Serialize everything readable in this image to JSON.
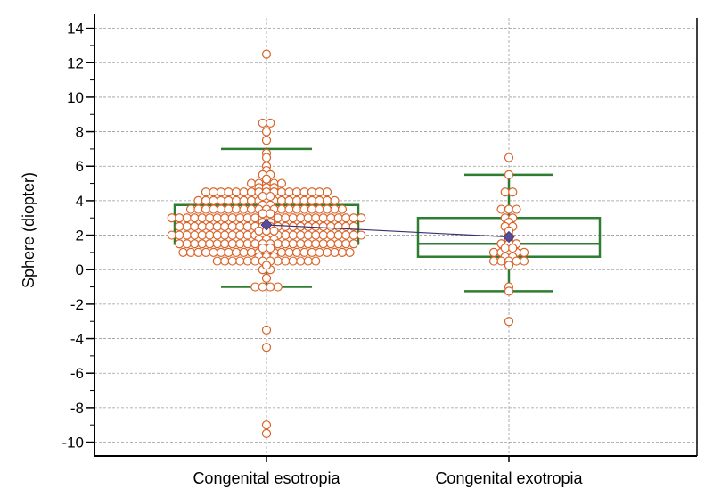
{
  "chart_data": {
    "type": "box",
    "title": "",
    "xlabel": "",
    "ylabel": "Sphere (diopter)",
    "ylim": [
      -10.8,
      14.6
    ],
    "yticks": [
      14,
      12,
      10,
      8,
      6,
      4,
      2,
      0,
      -2,
      -4,
      -6,
      -8,
      -10
    ],
    "grid": true,
    "categories": [
      "Congenital esotropia",
      "Congenital exotropia"
    ],
    "colors": {
      "box": "#2e7d32",
      "points": "#d9642a",
      "mean_marker": "#5a4a9c",
      "mean_line": "#3a3070",
      "grid": "#9a9a9a"
    },
    "boxes": [
      {
        "whisker_low": -1.0,
        "q1": 1.5,
        "median": 2.5,
        "q3": 3.75,
        "whisker_high": 7.0,
        "mean": 2.6
      },
      {
        "whisker_low": -1.25,
        "q1": 0.75,
        "median": 1.5,
        "q3": 3.0,
        "whisker_high": 5.5,
        "mean": 1.9
      }
    ],
    "points": [
      [
        12.5,
        8.5,
        8.5,
        8.0,
        7.5,
        6.75,
        6.5,
        6.0,
        5.75,
        5.5,
        5.5,
        5.25,
        5.0,
        5.0,
        5.0,
        5.0,
        5.0,
        4.75,
        4.75,
        4.75,
        4.5,
        4.5,
        4.5,
        4.5,
        4.5,
        4.5,
        4.5,
        4.5,
        4.5,
        4.5,
        4.5,
        4.5,
        4.5,
        4.5,
        4.5,
        4.5,
        4.5,
        4.25,
        4.25,
        4.0,
        4.0,
        4.0,
        4.0,
        4.0,
        4.0,
        4.0,
        4.0,
        4.0,
        4.0,
        4.0,
        4.0,
        4.0,
        4.0,
        4.0,
        4.0,
        4.0,
        4.0,
        4.0,
        3.75,
        3.75,
        3.5,
        3.5,
        3.5,
        3.5,
        3.5,
        3.5,
        3.5,
        3.5,
        3.5,
        3.5,
        3.5,
        3.5,
        3.5,
        3.5,
        3.5,
        3.5,
        3.5,
        3.5,
        3.5,
        3.5,
        3.5,
        3.25,
        3.25,
        3.0,
        3.0,
        3.0,
        3.0,
        3.0,
        3.0,
        3.0,
        3.0,
        3.0,
        3.0,
        3.0,
        3.0,
        3.0,
        3.0,
        3.0,
        3.0,
        3.0,
        3.0,
        3.0,
        3.0,
        3.0,
        3.0,
        3.0,
        3.0,
        3.0,
        3.0,
        2.75,
        2.75,
        2.5,
        2.5,
        2.5,
        2.5,
        2.5,
        2.5,
        2.5,
        2.5,
        2.5,
        2.5,
        2.5,
        2.5,
        2.5,
        2.5,
        2.5,
        2.5,
        2.5,
        2.5,
        2.5,
        2.5,
        2.5,
        2.5,
        2.5,
        2.5,
        2.25,
        2.25,
        2.25,
        2.0,
        2.0,
        2.0,
        2.0,
        2.0,
        2.0,
        2.0,
        2.0,
        2.0,
        2.0,
        2.0,
        2.0,
        2.0,
        2.0,
        2.0,
        2.0,
        2.0,
        2.0,
        2.0,
        2.0,
        2.0,
        2.0,
        2.0,
        2.0,
        2.0,
        2.0,
        1.75,
        1.75,
        1.75,
        1.5,
        1.5,
        1.5,
        1.5,
        1.5,
        1.5,
        1.5,
        1.5,
        1.5,
        1.5,
        1.5,
        1.5,
        1.5,
        1.5,
        1.5,
        1.5,
        1.5,
        1.5,
        1.5,
        1.5,
        1.5,
        1.5,
        1.5,
        1.5,
        1.25,
        1.25,
        1.0,
        1.0,
        1.0,
        1.0,
        1.0,
        1.0,
        1.0,
        1.0,
        1.0,
        1.0,
        1.0,
        1.0,
        1.0,
        1.0,
        1.0,
        1.0,
        1.0,
        1.0,
        1.0,
        1.0,
        1.0,
        1.0,
        1.0,
        0.75,
        0.75,
        0.75,
        0.5,
        0.5,
        0.5,
        0.5,
        0.5,
        0.5,
        0.5,
        0.5,
        0.5,
        0.5,
        0.5,
        0.5,
        0.5,
        0.5,
        0.25,
        0.0,
        0.0,
        -0.5,
        -1.0,
        -1.0,
        -1.0,
        -1.0,
        -3.5,
        -4.5,
        -9.0,
        -9.5
      ],
      [
        6.5,
        5.5,
        4.5,
        4.5,
        3.5,
        3.5,
        3.5,
        3.0,
        3.0,
        2.75,
        2.5,
        2.5,
        2.25,
        2.0,
        1.75,
        1.5,
        1.5,
        1.5,
        1.25,
        1.25,
        1.0,
        1.0,
        1.0,
        1.0,
        1.0,
        0.75,
        0.75,
        0.5,
        0.5,
        0.5,
        0.5,
        0.5,
        0.25,
        -1.0,
        -1.25,
        -3.0
      ]
    ]
  }
}
